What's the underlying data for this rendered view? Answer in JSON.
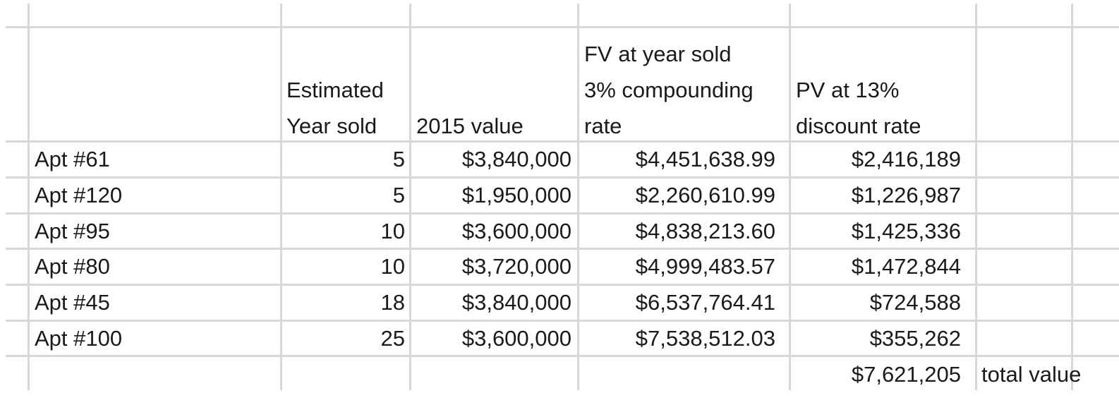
{
  "spreadsheet": {
    "headers": {
      "estimated_year_sold": [
        "Estimated",
        "Year sold"
      ],
      "value_2015": [
        "2015 value"
      ],
      "fv": [
        "FV at year sold",
        "3% compounding",
        "rate"
      ],
      "pv": [
        "PV at 13%",
        "discount rate"
      ]
    },
    "rows": [
      {
        "name": "Apt #61",
        "year": "5",
        "value": "$3,840,000",
        "fv": "$4,451,638.99",
        "pv": "$2,416,189"
      },
      {
        "name": "Apt #120",
        "year": "5",
        "value": "$1,950,000",
        "fv": "$2,260,610.99",
        "pv": "$1,226,987"
      },
      {
        "name": "Apt #95",
        "year": "10",
        "value": "$3,600,000",
        "fv": "$4,838,213.60",
        "pv": "$1,425,336"
      },
      {
        "name": "Apt #80",
        "year": "10",
        "value": "$3,720,000",
        "fv": "$4,999,483.57",
        "pv": "$1,472,844"
      },
      {
        "name": "Apt #45",
        "year": "18",
        "value": "$3,840,000",
        "fv": "$6,537,764.41",
        "pv": "$724,588"
      },
      {
        "name": "Apt #100",
        "year": "25",
        "value": "$3,600,000",
        "fv": "$7,538,512.03",
        "pv": "$355,262"
      }
    ],
    "total": {
      "value": "$7,621,205",
      "label": "total value"
    }
  }
}
